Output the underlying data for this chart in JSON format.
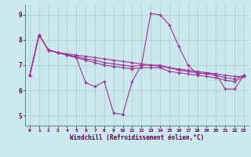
{
  "xlabel": "Windchill (Refroidissement éolien,°C)",
  "background_color": "#cce8ec",
  "grid_color": "#aacccc",
  "line_color": "#993399",
  "xlim": [
    -0.5,
    23.5
  ],
  "ylim": [
    4.6,
    9.4
  ],
  "xticks": [
    0,
    1,
    2,
    3,
    4,
    5,
    6,
    7,
    8,
    9,
    10,
    11,
    12,
    13,
    14,
    15,
    16,
    17,
    18,
    19,
    20,
    21,
    22,
    23
  ],
  "yticks": [
    5,
    6,
    7,
    8,
    9
  ],
  "series1": [
    6.6,
    8.2,
    7.6,
    7.5,
    7.4,
    7.3,
    6.3,
    6.15,
    6.35,
    5.1,
    5.05,
    6.35,
    7.0,
    9.05,
    9.0,
    8.6,
    7.75,
    7.0,
    6.65,
    6.7,
    6.65,
    6.05,
    6.05,
    6.6
  ],
  "series2": [
    6.6,
    8.2,
    7.6,
    7.5,
    7.45,
    7.4,
    7.35,
    7.3,
    7.25,
    7.2,
    7.15,
    7.1,
    7.05,
    7.0,
    6.95,
    6.9,
    6.85,
    6.8,
    6.75,
    6.7,
    6.65,
    6.6,
    6.55,
    6.55
  ],
  "series3": [
    6.6,
    8.2,
    7.6,
    7.5,
    7.4,
    7.35,
    7.25,
    7.2,
    7.1,
    7.05,
    7.0,
    6.95,
    7.0,
    7.0,
    7.0,
    6.9,
    6.8,
    6.75,
    6.7,
    6.65,
    6.6,
    6.5,
    6.45,
    6.6
  ],
  "series4": [
    6.6,
    8.2,
    7.6,
    7.5,
    7.4,
    7.3,
    7.2,
    7.1,
    7.0,
    6.95,
    6.9,
    6.85,
    6.9,
    6.9,
    6.9,
    6.75,
    6.7,
    6.65,
    6.6,
    6.55,
    6.5,
    6.4,
    6.35,
    6.55
  ]
}
